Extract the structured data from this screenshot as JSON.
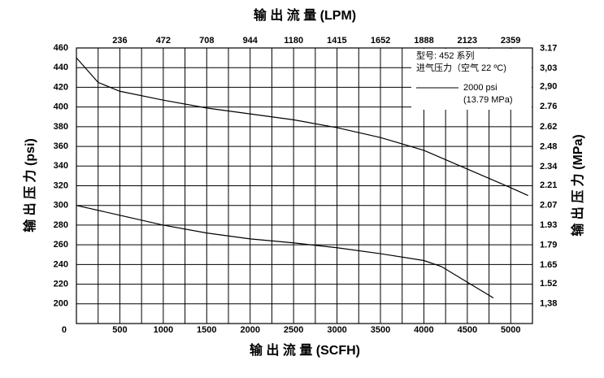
{
  "chart_data": {
    "type": "line",
    "title_top": "输 出 流 量 (LPM)",
    "xlabel": "输 出 流 量 (SCFH)",
    "ylabel": "输 出 压 力 (psi)",
    "y2label": "输 出 压 力 (MPa)",
    "annotations": [
      "型号: 452 系列",
      "进气压力（空气 22 ºC)"
    ],
    "legend": {
      "label": "2000 psi",
      "sublabel": "(13.79 MPa)"
    },
    "xlim": [
      0,
      5250
    ],
    "xticks": [
      0,
      500,
      1000,
      1500,
      2000,
      2500,
      3000,
      3500,
      4000,
      4500,
      5000
    ],
    "x2lim": [
      0,
      2477.5
    ],
    "x2ticks": [
      236,
      472,
      708,
      944,
      1180,
      1415,
      1652,
      1888,
      2123,
      2359
    ],
    "ylim": [
      180,
      460
    ],
    "yticks": [
      200,
      220,
      240,
      260,
      280,
      300,
      320,
      340,
      360,
      380,
      400,
      420,
      440,
      460
    ],
    "y2lim": [
      1.241,
      3.172
    ],
    "y2ticks": [
      {
        "value": 1.38,
        "label": "1,38"
      },
      1.52,
      1.65,
      1.79,
      1.93,
      2.07,
      2.21,
      2.34,
      2.48,
      2.62,
      2.76,
      {
        "value": 2.9,
        "label": "2,90"
      },
      {
        "value": 3.03,
        "label": "3,03"
      },
      3.17
    ],
    "grid": true,
    "xgrid_step": 250,
    "color": "#000000",
    "series": [
      {
        "x": [
          0,
          250,
          500,
          1000,
          1500,
          2000,
          2500,
          3000,
          3500,
          4000,
          4500,
          5000,
          5200
        ],
        "values": [
          450,
          425,
          416,
          407,
          399,
          393,
          387,
          379,
          369,
          356,
          337,
          318,
          310
        ]
      },
      {
        "x": [
          0,
          500,
          1000,
          1500,
          2000,
          2500,
          3000,
          3500,
          4000,
          4200,
          4500,
          4800
        ],
        "values": [
          300,
          290,
          280,
          272,
          266,
          262,
          257,
          251,
          244,
          238,
          222,
          206
        ]
      }
    ]
  }
}
